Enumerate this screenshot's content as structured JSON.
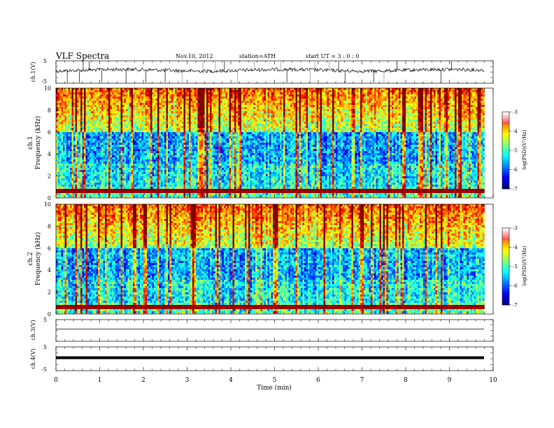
{
  "header": {
    "title": "VLF Spectra",
    "date": "Nov.10, 2012",
    "station": "station=ATH",
    "start": "start  UT  =   3  : 0  : 0"
  },
  "chart_data": [
    {
      "id": "ch1-waveform",
      "type": "line",
      "ylabel": "ch.1(V)",
      "ylim": [
        -5,
        5
      ],
      "y_ticks": [
        "5",
        "-5"
      ],
      "xlim": [
        0,
        10
      ]
    },
    {
      "id": "ch1-spectrogram",
      "type": "heatmap",
      "ylabel_top": "ch.1",
      "ylabel": "Frequency  (kHz)",
      "ylim": [
        0,
        10
      ],
      "y_ticks": [
        "0",
        "2",
        "4",
        "6",
        "8",
        "10"
      ],
      "xlim": [
        0,
        9.8
      ],
      "colorbar": {
        "label": "log(PSD)(V²/Hz)",
        "range": [
          -7,
          -3
        ],
        "ticks": [
          "-3",
          "-4",
          "-5",
          "-6",
          "-7"
        ]
      }
    },
    {
      "id": "ch2-spectrogram",
      "type": "heatmap",
      "ylabel_top": "ch.2",
      "ylabel": "Frequency  (kHz)",
      "ylim": [
        0,
        10
      ],
      "y_ticks": [
        "0",
        "2",
        "4",
        "6",
        "8",
        "10"
      ],
      "xlim": [
        0,
        9.8
      ],
      "colorbar": {
        "label": "log(PSD)(V²/Hz)",
        "range": [
          -7,
          -3
        ],
        "ticks": [
          "-3",
          "-4",
          "-5",
          "-6",
          "-7"
        ]
      }
    },
    {
      "id": "ch3-waveform",
      "type": "line",
      "ylabel": "ch.3(V)",
      "ylim": [
        -5,
        5
      ],
      "y_ticks": [
        "5"
      ],
      "xlim": [
        0,
        10
      ]
    },
    {
      "id": "ch4-waveform",
      "type": "line",
      "ylabel": "ch.4(V)",
      "ylim": [
        -5,
        5
      ],
      "y_ticks": [
        "5",
        "-5"
      ],
      "xlim": [
        0,
        10
      ]
    }
  ],
  "x_axis": {
    "label": "Time  (min)",
    "range": [
      0,
      10
    ],
    "ticks": [
      "0",
      "1",
      "2",
      "3",
      "4",
      "5",
      "6",
      "7",
      "8",
      "9",
      "10"
    ]
  }
}
